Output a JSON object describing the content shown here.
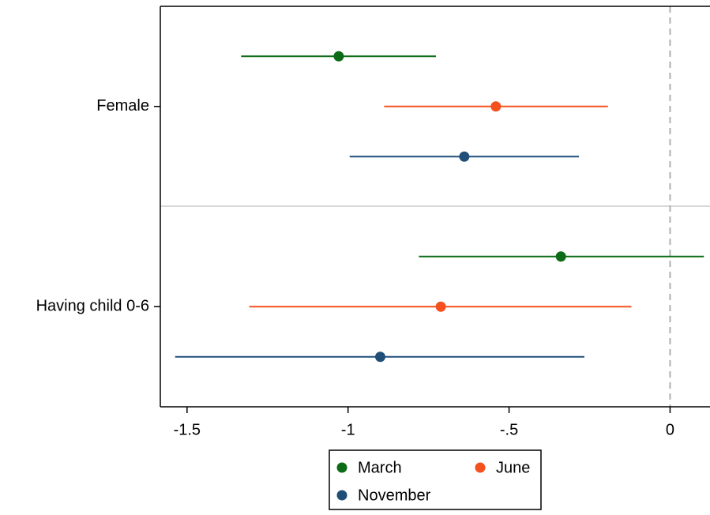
{
  "chart_data": {
    "type": "coefplot",
    "categories": [
      "Female",
      "Having child 0-6"
    ],
    "series": [
      {
        "name": "March",
        "color": "#0b6b16",
        "values": [
          -1.029,
          -0.339
        ],
        "lower": [
          -1.332,
          -0.78
        ],
        "upper": [
          -0.727,
          0.105
        ]
      },
      {
        "name": "June",
        "color": "#f4511e",
        "values": [
          -0.541,
          -0.712
        ],
        "lower": [
          -0.888,
          -1.307
        ],
        "upper": [
          -0.193,
          -0.12
        ]
      },
      {
        "name": "November",
        "color": "#1f4e79",
        "values": [
          -0.639,
          -0.9
        ],
        "lower": [
          -0.995,
          -1.537
        ],
        "upper": [
          -0.283,
          -0.266
        ]
      }
    ],
    "xlim": [
      -1.583,
      0.124
    ],
    "xticks": [
      -1.5,
      -1,
      {
        "value": -0.5,
        "label": "-.5"
      },
      0
    ],
    "xline": 0
  }
}
